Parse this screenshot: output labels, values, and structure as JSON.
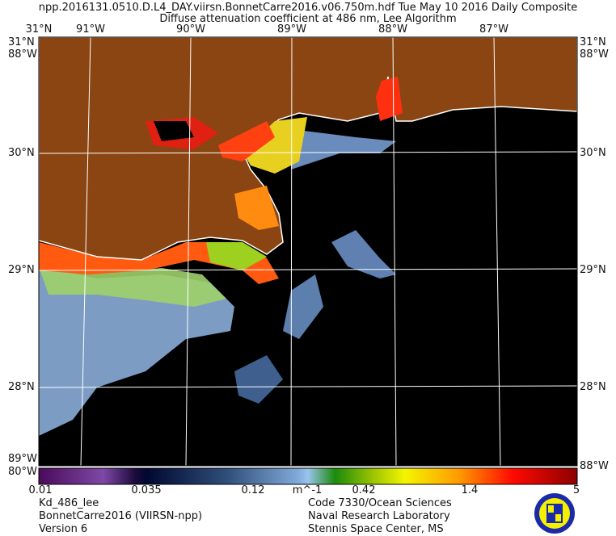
{
  "header": {
    "line1": "npp.2016131.0510.D.L4_DAY.viirsn.BonnetCarre2016.v06.750m.hdf     Tue May 10 2016 Daily Composite",
    "line2": "Diffuse attenuation coefficient at 486 nm, Lee Algorithm"
  },
  "map": {
    "lon_labels": [
      "91°W",
      "90°W",
      "89°W",
      "88°W",
      "87°W"
    ],
    "lat_labels": [
      "30°N",
      "29°N",
      "28°N"
    ],
    "corner_top_lat": "31°N",
    "corner_top_lon": "88°W",
    "corner_bottom_lon_a": "89°W",
    "corner_bottom_lon_b": "80°W",
    "corner_bottom_right": "88°W",
    "land_color": "#8b4513",
    "ocean_color": "#000000"
  },
  "colorbar": {
    "ticks": [
      "0.01",
      "0.035",
      "0.12",
      "0.42",
      "1.4",
      "5"
    ],
    "units": "m^-1"
  },
  "footer": {
    "left": [
      "Kd_486_lee",
      "BonnetCarre2016 (VIIRSN-npp)",
      "Version 6"
    ],
    "right": [
      "Code 7330/Ocean Sciences",
      "Naval Research Laboratory",
      "Stennis Space Center, MS"
    ]
  }
}
